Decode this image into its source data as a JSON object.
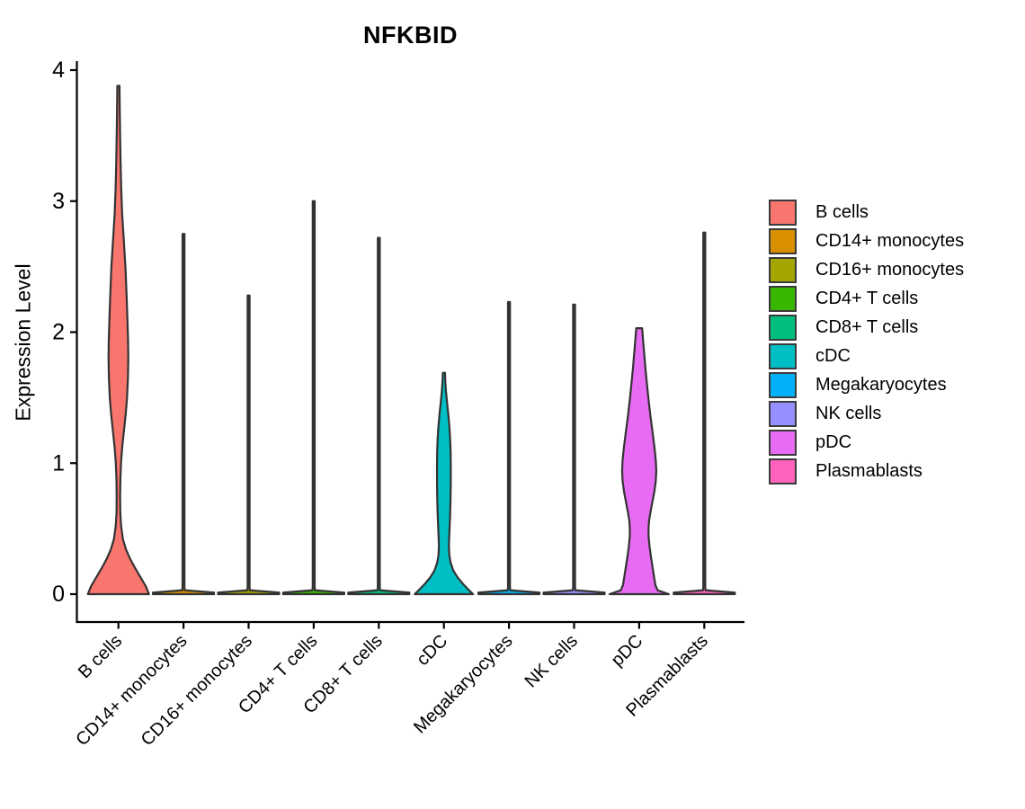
{
  "page": {
    "background_color": "#ffffff",
    "text_color": "#000000",
    "violin_outline_color": "#333333",
    "axis_color": "#000000"
  },
  "chart_data": {
    "type": "violin",
    "title": "NFKBID",
    "xlabel": "",
    "ylabel": "Expression Level",
    "ylim": [
      0,
      4
    ],
    "yticks": [
      0,
      1,
      2,
      3,
      4
    ],
    "grid": false,
    "legend_position": "right",
    "categories": [
      "B cells",
      "CD14+ monocytes",
      "CD16+ monocytes",
      "CD4+ T cells",
      "CD8+ T cells",
      "cDC",
      "Megakaryocytes",
      "NK cells",
      "pDC",
      "Plasmablasts"
    ],
    "legend_labels": [
      "B cells",
      "CD14+ monocytes",
      "CD16+ monocytes",
      "CD4+ T cells",
      "CD8+ T cells",
      "cDC",
      "Megakaryocytes",
      "NK cells",
      "pDC",
      "Plasmablasts"
    ],
    "series": [
      {
        "name": "B cells",
        "color": "#F8766D",
        "max_expression": 3.88,
        "profile": [
          [
            3.88,
            1.2
          ],
          [
            3.7,
            1.5
          ],
          [
            3.5,
            1.9
          ],
          [
            3.3,
            2.4
          ],
          [
            3.1,
            3.1
          ],
          [
            2.9,
            4.2
          ],
          [
            2.7,
            6.0
          ],
          [
            2.5,
            7.8
          ],
          [
            2.3,
            9.0
          ],
          [
            2.1,
            10.0
          ],
          [
            1.95,
            10.7
          ],
          [
            1.8,
            11.0
          ],
          [
            1.65,
            10.6
          ],
          [
            1.5,
            9.6
          ],
          [
            1.38,
            8.2
          ],
          [
            1.25,
            6.2
          ],
          [
            1.12,
            4.2
          ],
          [
            1.0,
            2.9
          ],
          [
            0.88,
            2.2
          ],
          [
            0.75,
            1.9
          ],
          [
            0.62,
            2.1
          ],
          [
            0.52,
            3.0
          ],
          [
            0.42,
            5.0
          ],
          [
            0.34,
            8.5
          ],
          [
            0.27,
            13.0
          ],
          [
            0.2,
            18.5
          ],
          [
            0.13,
            24.5
          ],
          [
            0.06,
            30.5
          ],
          [
            0.0,
            34.0
          ]
        ]
      },
      {
        "name": "CD14+ monocytes",
        "color": "#D89000",
        "max_expression": 2.75,
        "profile": [
          [
            2.75,
            1.1
          ],
          [
            0.06,
            1.1
          ],
          [
            0.03,
            1.3
          ],
          [
            0.012,
            34
          ],
          [
            0,
            34
          ]
        ]
      },
      {
        "name": "CD16+ monocytes",
        "color": "#A3A500",
        "max_expression": 2.28,
        "profile": [
          [
            2.28,
            1.1
          ],
          [
            0.06,
            1.1
          ],
          [
            0.03,
            1.3
          ],
          [
            0.012,
            34
          ],
          [
            0,
            34
          ]
        ]
      },
      {
        "name": "CD4+ T cells",
        "color": "#39B600",
        "max_expression": 3.0,
        "profile": [
          [
            3.0,
            1.1
          ],
          [
            0.06,
            1.1
          ],
          [
            0.03,
            1.3
          ],
          [
            0.012,
            34
          ],
          [
            0,
            34
          ]
        ]
      },
      {
        "name": "CD8+ T cells",
        "color": "#00BF7D",
        "max_expression": 2.72,
        "profile": [
          [
            2.72,
            1.1
          ],
          [
            0.06,
            1.1
          ],
          [
            0.03,
            1.3
          ],
          [
            0.012,
            34
          ],
          [
            0,
            34
          ]
        ]
      },
      {
        "name": "cDC",
        "color": "#00BFC4",
        "max_expression": 1.69,
        "profile": [
          [
            1.69,
            1.2
          ],
          [
            1.62,
            1.6
          ],
          [
            1.55,
            2.3
          ],
          [
            1.47,
            3.4
          ],
          [
            1.38,
            4.8
          ],
          [
            1.28,
            6.1
          ],
          [
            1.18,
            7.0
          ],
          [
            1.08,
            7.5
          ],
          [
            0.95,
            7.7
          ],
          [
            0.82,
            7.6
          ],
          [
            0.7,
            7.3
          ],
          [
            0.6,
            6.9
          ],
          [
            0.5,
            6.3
          ],
          [
            0.42,
            5.8
          ],
          [
            0.36,
            5.6
          ],
          [
            0.3,
            6.0
          ],
          [
            0.24,
            7.5
          ],
          [
            0.18,
            10.5
          ],
          [
            0.13,
            15.0
          ],
          [
            0.08,
            21.0
          ],
          [
            0.04,
            26.5
          ],
          [
            0.0,
            32.5
          ]
        ]
      },
      {
        "name": "Megakaryocytes",
        "color": "#00B0F6",
        "max_expression": 2.23,
        "profile": [
          [
            2.23,
            1.1
          ],
          [
            0.06,
            1.1
          ],
          [
            0.03,
            1.3
          ],
          [
            0.012,
            34
          ],
          [
            0,
            34
          ]
        ]
      },
      {
        "name": "NK cells",
        "color": "#9590FF",
        "max_expression": 2.21,
        "profile": [
          [
            2.21,
            1.1
          ],
          [
            0.06,
            1.1
          ],
          [
            0.03,
            1.3
          ],
          [
            0.012,
            34
          ],
          [
            0,
            34
          ]
        ]
      },
      {
        "name": "pDC",
        "color": "#E76BF3",
        "max_expression": 2.03,
        "profile": [
          [
            2.03,
            3.3
          ],
          [
            1.95,
            4.2
          ],
          [
            1.85,
            5.4
          ],
          [
            1.72,
            7.0
          ],
          [
            1.6,
            8.7
          ],
          [
            1.48,
            10.5
          ],
          [
            1.36,
            12.5
          ],
          [
            1.24,
            14.8
          ],
          [
            1.12,
            17.0
          ],
          [
            1.02,
            18.5
          ],
          [
            0.94,
            19.0
          ],
          [
            0.86,
            18.4
          ],
          [
            0.78,
            16.8
          ],
          [
            0.7,
            14.6
          ],
          [
            0.62,
            12.4
          ],
          [
            0.56,
            11.0
          ],
          [
            0.5,
            10.4
          ],
          [
            0.44,
            10.5
          ],
          [
            0.36,
            11.6
          ],
          [
            0.28,
            13.2
          ],
          [
            0.2,
            15.0
          ],
          [
            0.13,
            16.6
          ],
          [
            0.07,
            18.0
          ],
          [
            0.03,
            20.5
          ],
          [
            0.0,
            33.0
          ]
        ]
      },
      {
        "name": "Plasmablasts",
        "color": "#FF62BC",
        "max_expression": 2.76,
        "profile": [
          [
            2.76,
            1.1
          ],
          [
            0.06,
            1.1
          ],
          [
            0.03,
            1.3
          ],
          [
            0.012,
            34
          ],
          [
            0,
            34
          ]
        ]
      }
    ]
  }
}
